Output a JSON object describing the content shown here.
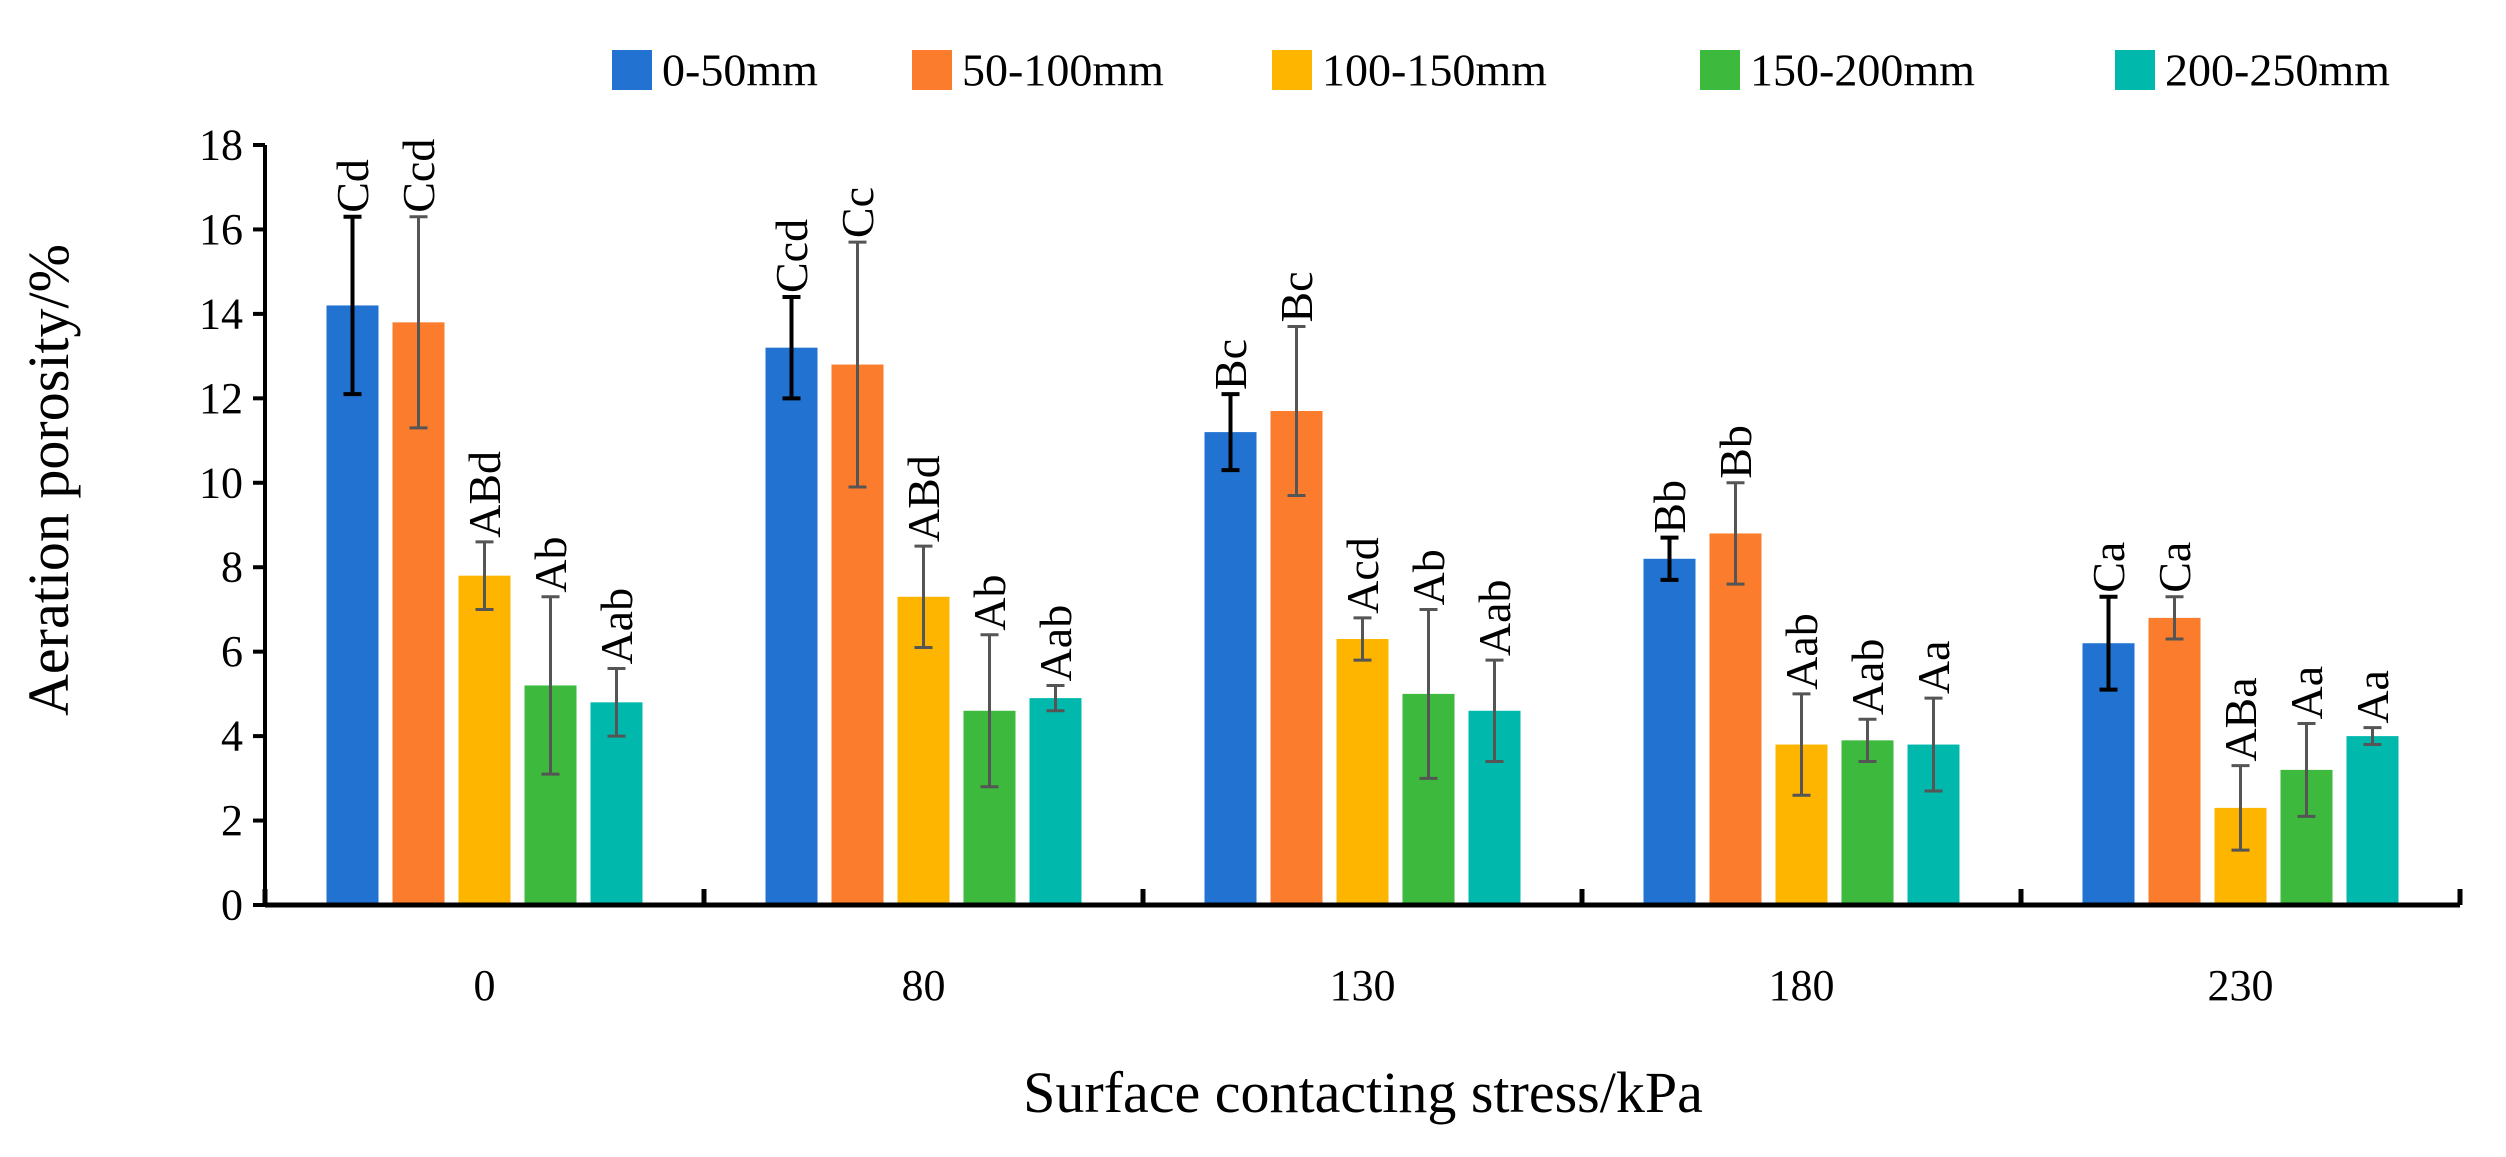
{
  "chart_data": {
    "type": "bar",
    "title": "",
    "xlabel": "Surface contacting stress/kPa",
    "ylabel": "Aeration porosity/%",
    "ylim": [
      0,
      18
    ],
    "yticks": [
      "0",
      "2",
      "4",
      "6",
      "8",
      "10",
      "12",
      "14",
      "16",
      "18"
    ],
    "categories": [
      "0",
      "80",
      "130",
      "180",
      "230"
    ],
    "legend_position": "top",
    "grid": false,
    "series": [
      {
        "name": "0-50mm",
        "color": "#2272d2",
        "values": [
          14.2,
          13.2,
          11.2,
          8.2,
          6.2
        ],
        "errors": [
          2.1,
          1.2,
          0.9,
          0.5,
          1.1
        ],
        "labels": [
          "Cd",
          "Ccd",
          "Bc",
          "Bb",
          "Ca"
        ]
      },
      {
        "name": "50-100mm",
        "color": "#fb7c2c",
        "values": [
          13.8,
          12.8,
          11.7,
          8.8,
          6.8
        ],
        "errors": [
          2.5,
          2.9,
          2.0,
          1.2,
          0.5
        ],
        "labels": [
          "Ccd",
          "Cc",
          "Bc",
          "Bb",
          "Ca"
        ]
      },
      {
        "name": "100-150mm",
        "color": "#fdb500",
        "values": [
          7.8,
          7.3,
          6.3,
          3.8,
          2.3
        ],
        "errors": [
          0.8,
          1.2,
          0.5,
          1.2,
          1.0
        ],
        "labels": [
          "ABd",
          "ABd",
          "Acd",
          "Aab",
          "ABa"
        ]
      },
      {
        "name": "150-200mm",
        "color": "#3dba3d",
        "values": [
          5.2,
          4.6,
          5.0,
          3.9,
          3.2
        ],
        "errors": [
          2.1,
          1.8,
          2.0,
          0.5,
          1.1
        ],
        "labels": [
          "Ab",
          "Ab",
          "Ab",
          "Aab",
          "Aa"
        ]
      },
      {
        "name": "200-250mm",
        "color": "#00b9ac",
        "values": [
          4.8,
          4.9,
          4.6,
          3.8,
          4.0
        ],
        "errors": [
          0.8,
          0.3,
          1.2,
          1.1,
          0.2
        ],
        "labels": [
          "Aab",
          "Aab",
          "Aab",
          "Aa",
          "Aa"
        ]
      }
    ]
  }
}
